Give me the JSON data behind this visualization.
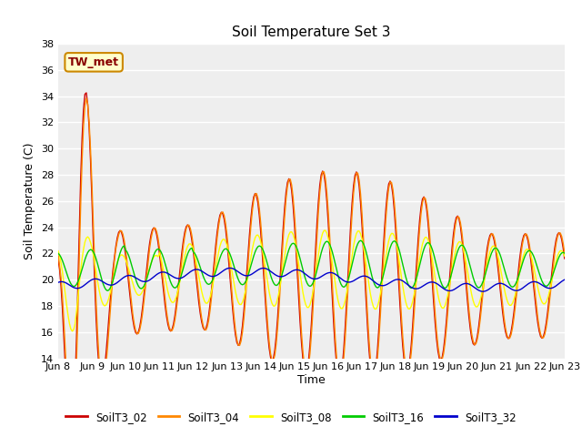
{
  "title": "Soil Temperature Set 3",
  "xlabel": "Time",
  "ylabel": "Soil Temperature (C)",
  "ylim": [
    14,
    38
  ],
  "yticks": [
    14,
    16,
    18,
    20,
    22,
    24,
    26,
    28,
    30,
    32,
    34,
    36,
    38
  ],
  "fig_bg": "#ffffff",
  "plot_bg": "#eeeeee",
  "series_colors": {
    "SoilT3_02": "#cc0000",
    "SoilT3_04": "#ff8800",
    "SoilT3_08": "#ffff00",
    "SoilT3_16": "#00cc00",
    "SoilT3_32": "#0000cc"
  },
  "annotation_text": "TW_met",
  "annotation_color": "#880000",
  "annotation_bg": "#ffffcc",
  "annotation_border": "#cc8800",
  "xtick_labels": [
    "Jun 8",
    "Jun 9",
    "Jun 10",
    "Jun 11",
    "Jun 12",
    "Jun 13",
    "Jun 14",
    "Jun 15",
    "Jun 16",
    "Jun 17",
    "Jun 18",
    "Jun 19",
    "Jun 20",
    "Jun 21",
    "Jun 22",
    "Jun 23"
  ],
  "legend_labels": [
    "SoilT3_02",
    "SoilT3_04",
    "SoilT3_08",
    "SoilT3_16",
    "SoilT3_32"
  ]
}
